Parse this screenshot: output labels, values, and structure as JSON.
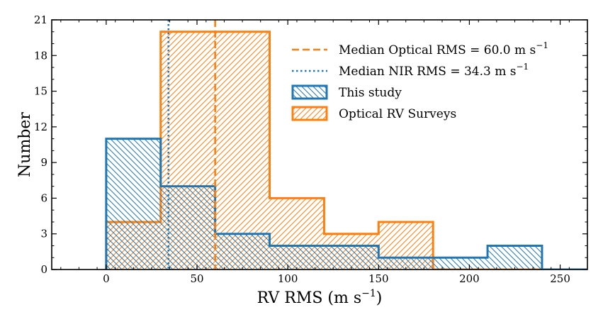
{
  "chart_data": {
    "type": "histogram",
    "xlabel": "RV RMS (m s",
    "xlabel_exponent": "−1",
    "xlabel_suffix": ")",
    "ylabel": "Number",
    "xlim": [
      -30,
      265
    ],
    "ylim": [
      0,
      21
    ],
    "xticks": [
      0,
      50,
      100,
      150,
      200,
      250
    ],
    "xtick_labels": [
      "0",
      "50",
      "100",
      "150",
      "200",
      "250"
    ],
    "yticks": [
      0,
      3,
      6,
      9,
      12,
      15,
      18,
      21
    ],
    "ytick_labels": [
      "0",
      "3",
      "6",
      "9",
      "12",
      "15",
      "18",
      "21"
    ],
    "bin_edges": [
      0,
      30,
      60,
      90,
      120,
      150,
      180,
      210,
      240,
      270
    ],
    "series": [
      {
        "name": "Optical RV Surveys",
        "color": "#ff7f0e",
        "hatch": "///",
        "values": [
          4,
          20,
          20,
          6,
          3,
          4,
          0,
          0,
          0
        ]
      },
      {
        "name": "This study",
        "color": "#1f77b4",
        "hatch": "\\\\\\",
        "values": [
          11,
          7,
          3,
          2,
          2,
          1,
          1,
          2,
          0
        ]
      }
    ],
    "vlines": [
      {
        "name": "Median Optical RMS",
        "value": 60.0,
        "color": "#ff7f0e",
        "style": "dashed"
      },
      {
        "name": "Median NIR RMS",
        "value": 34.3,
        "color": "#1f77b4",
        "style": "dotted"
      }
    ],
    "legend": {
      "position": "upper-right",
      "entries": [
        {
          "kind": "dashed",
          "color": "#ff7f0e",
          "text": "Median Optical RMS = 60.0 m s",
          "sup": "−1"
        },
        {
          "kind": "dotted",
          "color": "#1f77b4",
          "text": "Median NIR RMS = 34.3 m s",
          "sup": "−1"
        },
        {
          "kind": "patch",
          "color": "#1f77b4",
          "hatch": "back",
          "text": "This study",
          "sup": ""
        },
        {
          "kind": "patch",
          "color": "#ff7f0e",
          "hatch": "fwd",
          "text": "Optical RV Surveys",
          "sup": ""
        }
      ]
    }
  }
}
